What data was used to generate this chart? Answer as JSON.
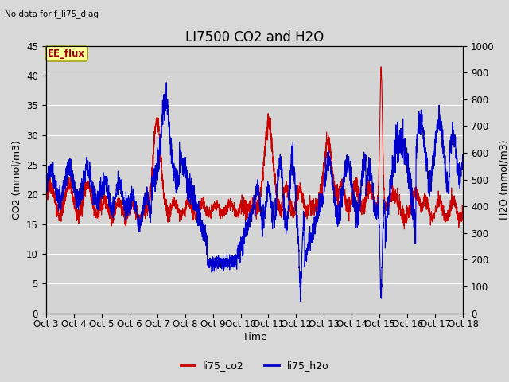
{
  "title": "LI7500 CO2 and H2O",
  "subtitle": "No data for f_li75_diag",
  "xlabel": "Time",
  "ylabel_left": "CO2 (mmol/m3)",
  "ylabel_right": "H2O (mmol/m3)",
  "ylim_left": [
    0,
    45
  ],
  "ylim_right": [
    0,
    1000
  ],
  "yticks_left": [
    0,
    5,
    10,
    15,
    20,
    25,
    30,
    35,
    40,
    45
  ],
  "yticks_right": [
    0,
    100,
    200,
    300,
    400,
    500,
    600,
    700,
    800,
    900,
    1000
  ],
  "xtick_labels": [
    "Oct 3",
    "Oct 4",
    "Oct 5",
    "Oct 6",
    "Oct 7",
    "Oct 8",
    "Oct 9",
    "Oct 10",
    "Oct 11",
    "Oct 12",
    "Oct 13",
    "Oct 14",
    "Oct 15",
    "Oct 16",
    "Oct 17",
    "Oct 18"
  ],
  "bg_color": "#d8d8d8",
  "plot_bg_color": "#d4d4d4",
  "grid_color": "#ffffff",
  "line_color_co2": "#cc0000",
  "line_color_h2o": "#0000cc",
  "legend_label_co2": "li75_co2",
  "legend_label_h2o": "li75_h2o",
  "annotation_box": "EE_flux",
  "annotation_box_facecolor": "#ffff99",
  "annotation_box_edgecolor": "#999900",
  "title_fontsize": 12,
  "label_fontsize": 9,
  "tick_fontsize": 8.5
}
